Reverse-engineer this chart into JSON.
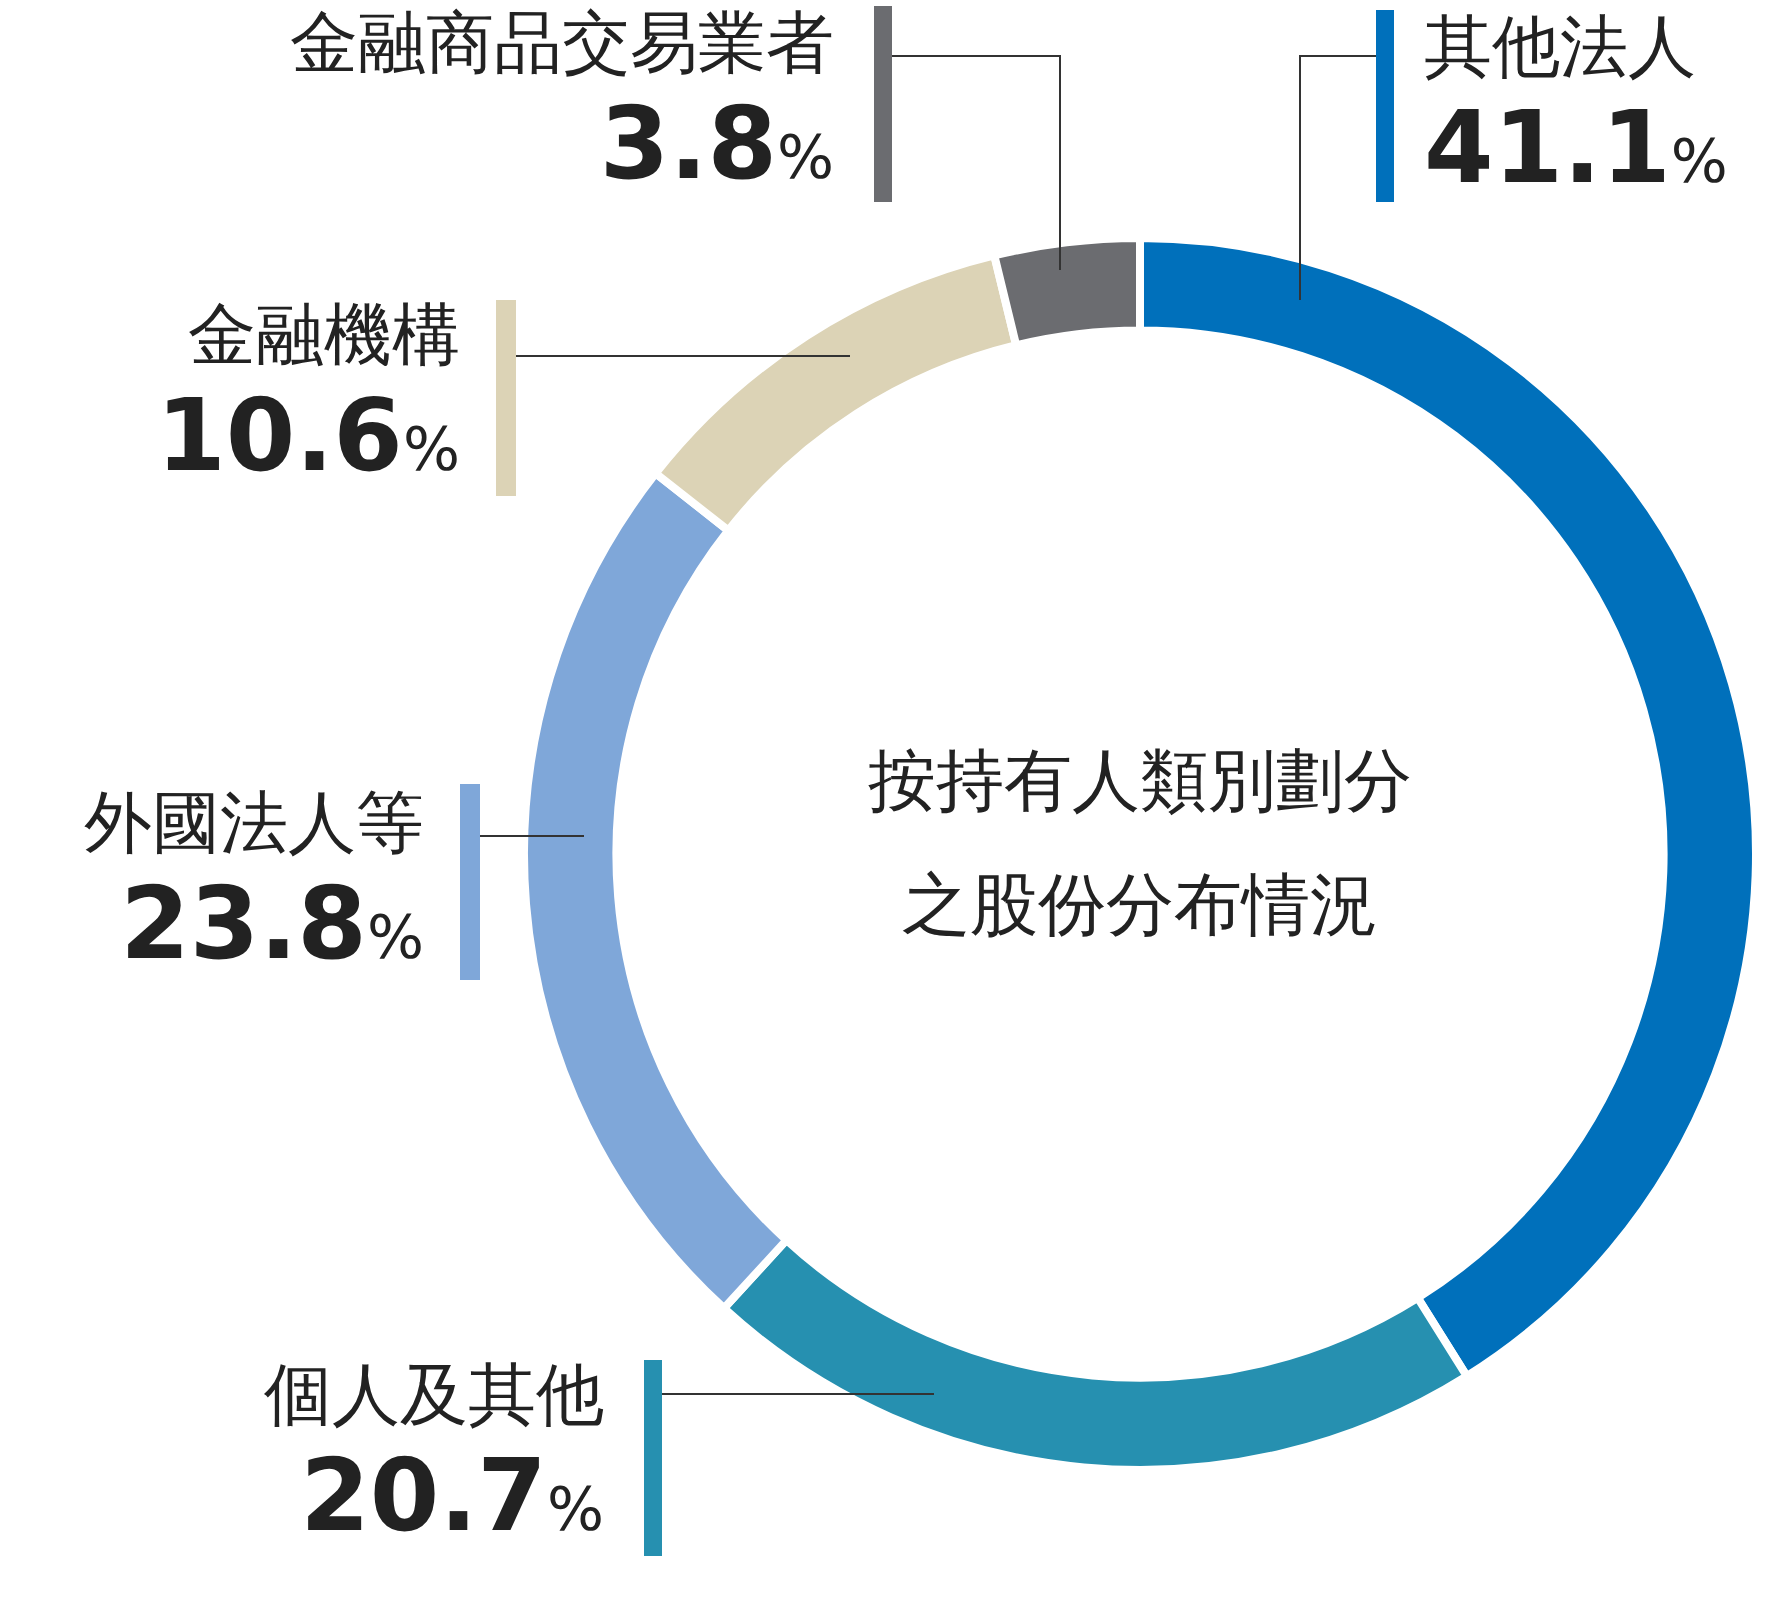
{
  "chart_data": {
    "type": "donut",
    "title": "按持有人類別劃分之股份分布情況",
    "categories": [
      "其他法人",
      "個人及其他",
      "外國法人等",
      "金融機構",
      "金融商品交易業者"
    ],
    "values": [
      41.1,
      20.7,
      23.8,
      10.6,
      3.8
    ],
    "colors": [
      "#0070bb",
      "#2690b0",
      "#7fa7d9",
      "#dcd3b6",
      "#6b6c70"
    ],
    "value_labels": [
      "41.1%",
      "20.7%",
      "23.8%",
      "10.6%",
      "3.8%"
    ],
    "legend": false
  }
}
